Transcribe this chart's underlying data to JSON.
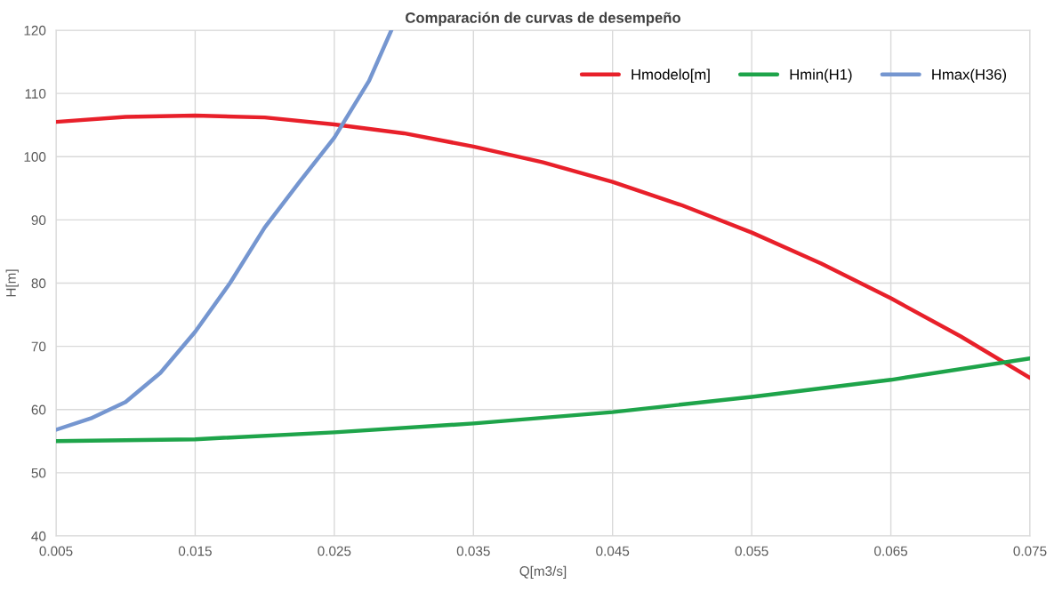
{
  "chart_data": {
    "type": "line",
    "title": "Comparación de curvas de desempeño",
    "xlabel": "Q[m3/s]",
    "ylabel": "H[m]",
    "series": [
      {
        "name": "Hmodelo[m]",
        "color": "#e8202a",
        "x": [
          0.005,
          0.01,
          0.015,
          0.02,
          0.025,
          0.03,
          0.035,
          0.04,
          0.045,
          0.05,
          0.055,
          0.06,
          0.065,
          0.07,
          0.075
        ],
        "values": [
          105.5,
          106.3,
          106.5,
          106.2,
          105.1,
          103.7,
          101.6,
          99.1,
          96,
          92.3,
          88,
          83.1,
          77.6,
          71.6,
          65
        ]
      },
      {
        "name": "Hmin(H1)",
        "color": "#1ea44a",
        "x": [
          0.005,
          0.015,
          0.025,
          0.035,
          0.045,
          0.055,
          0.065,
          0.075
        ],
        "values": [
          55,
          55.3,
          56.4,
          57.8,
          59.6,
          62,
          64.7,
          68.1
        ]
      },
      {
        "name": "Hmax(H36)",
        "color": "#7596d0",
        "x": [
          0.005,
          0.0075,
          0.01,
          0.0125,
          0.015,
          0.0175,
          0.02,
          0.0225,
          0.025,
          0.0275,
          0.0291
        ],
        "values": [
          56.8,
          58.6,
          61.2,
          65.8,
          72.3,
          80,
          88.8,
          96,
          103,
          112,
          120
        ]
      }
    ],
    "xlim": [
      0.005,
      0.075
    ],
    "xticks": [
      0.005,
      0.015,
      0.025,
      0.035,
      0.045,
      0.055,
      0.065,
      0.075
    ],
    "ylim": [
      40,
      120
    ],
    "yticks": [
      40,
      50,
      60,
      70,
      80,
      90,
      100,
      110,
      120
    ],
    "grid": true,
    "legend": "top right",
    "marker": "none",
    "line_style": "solid"
  }
}
